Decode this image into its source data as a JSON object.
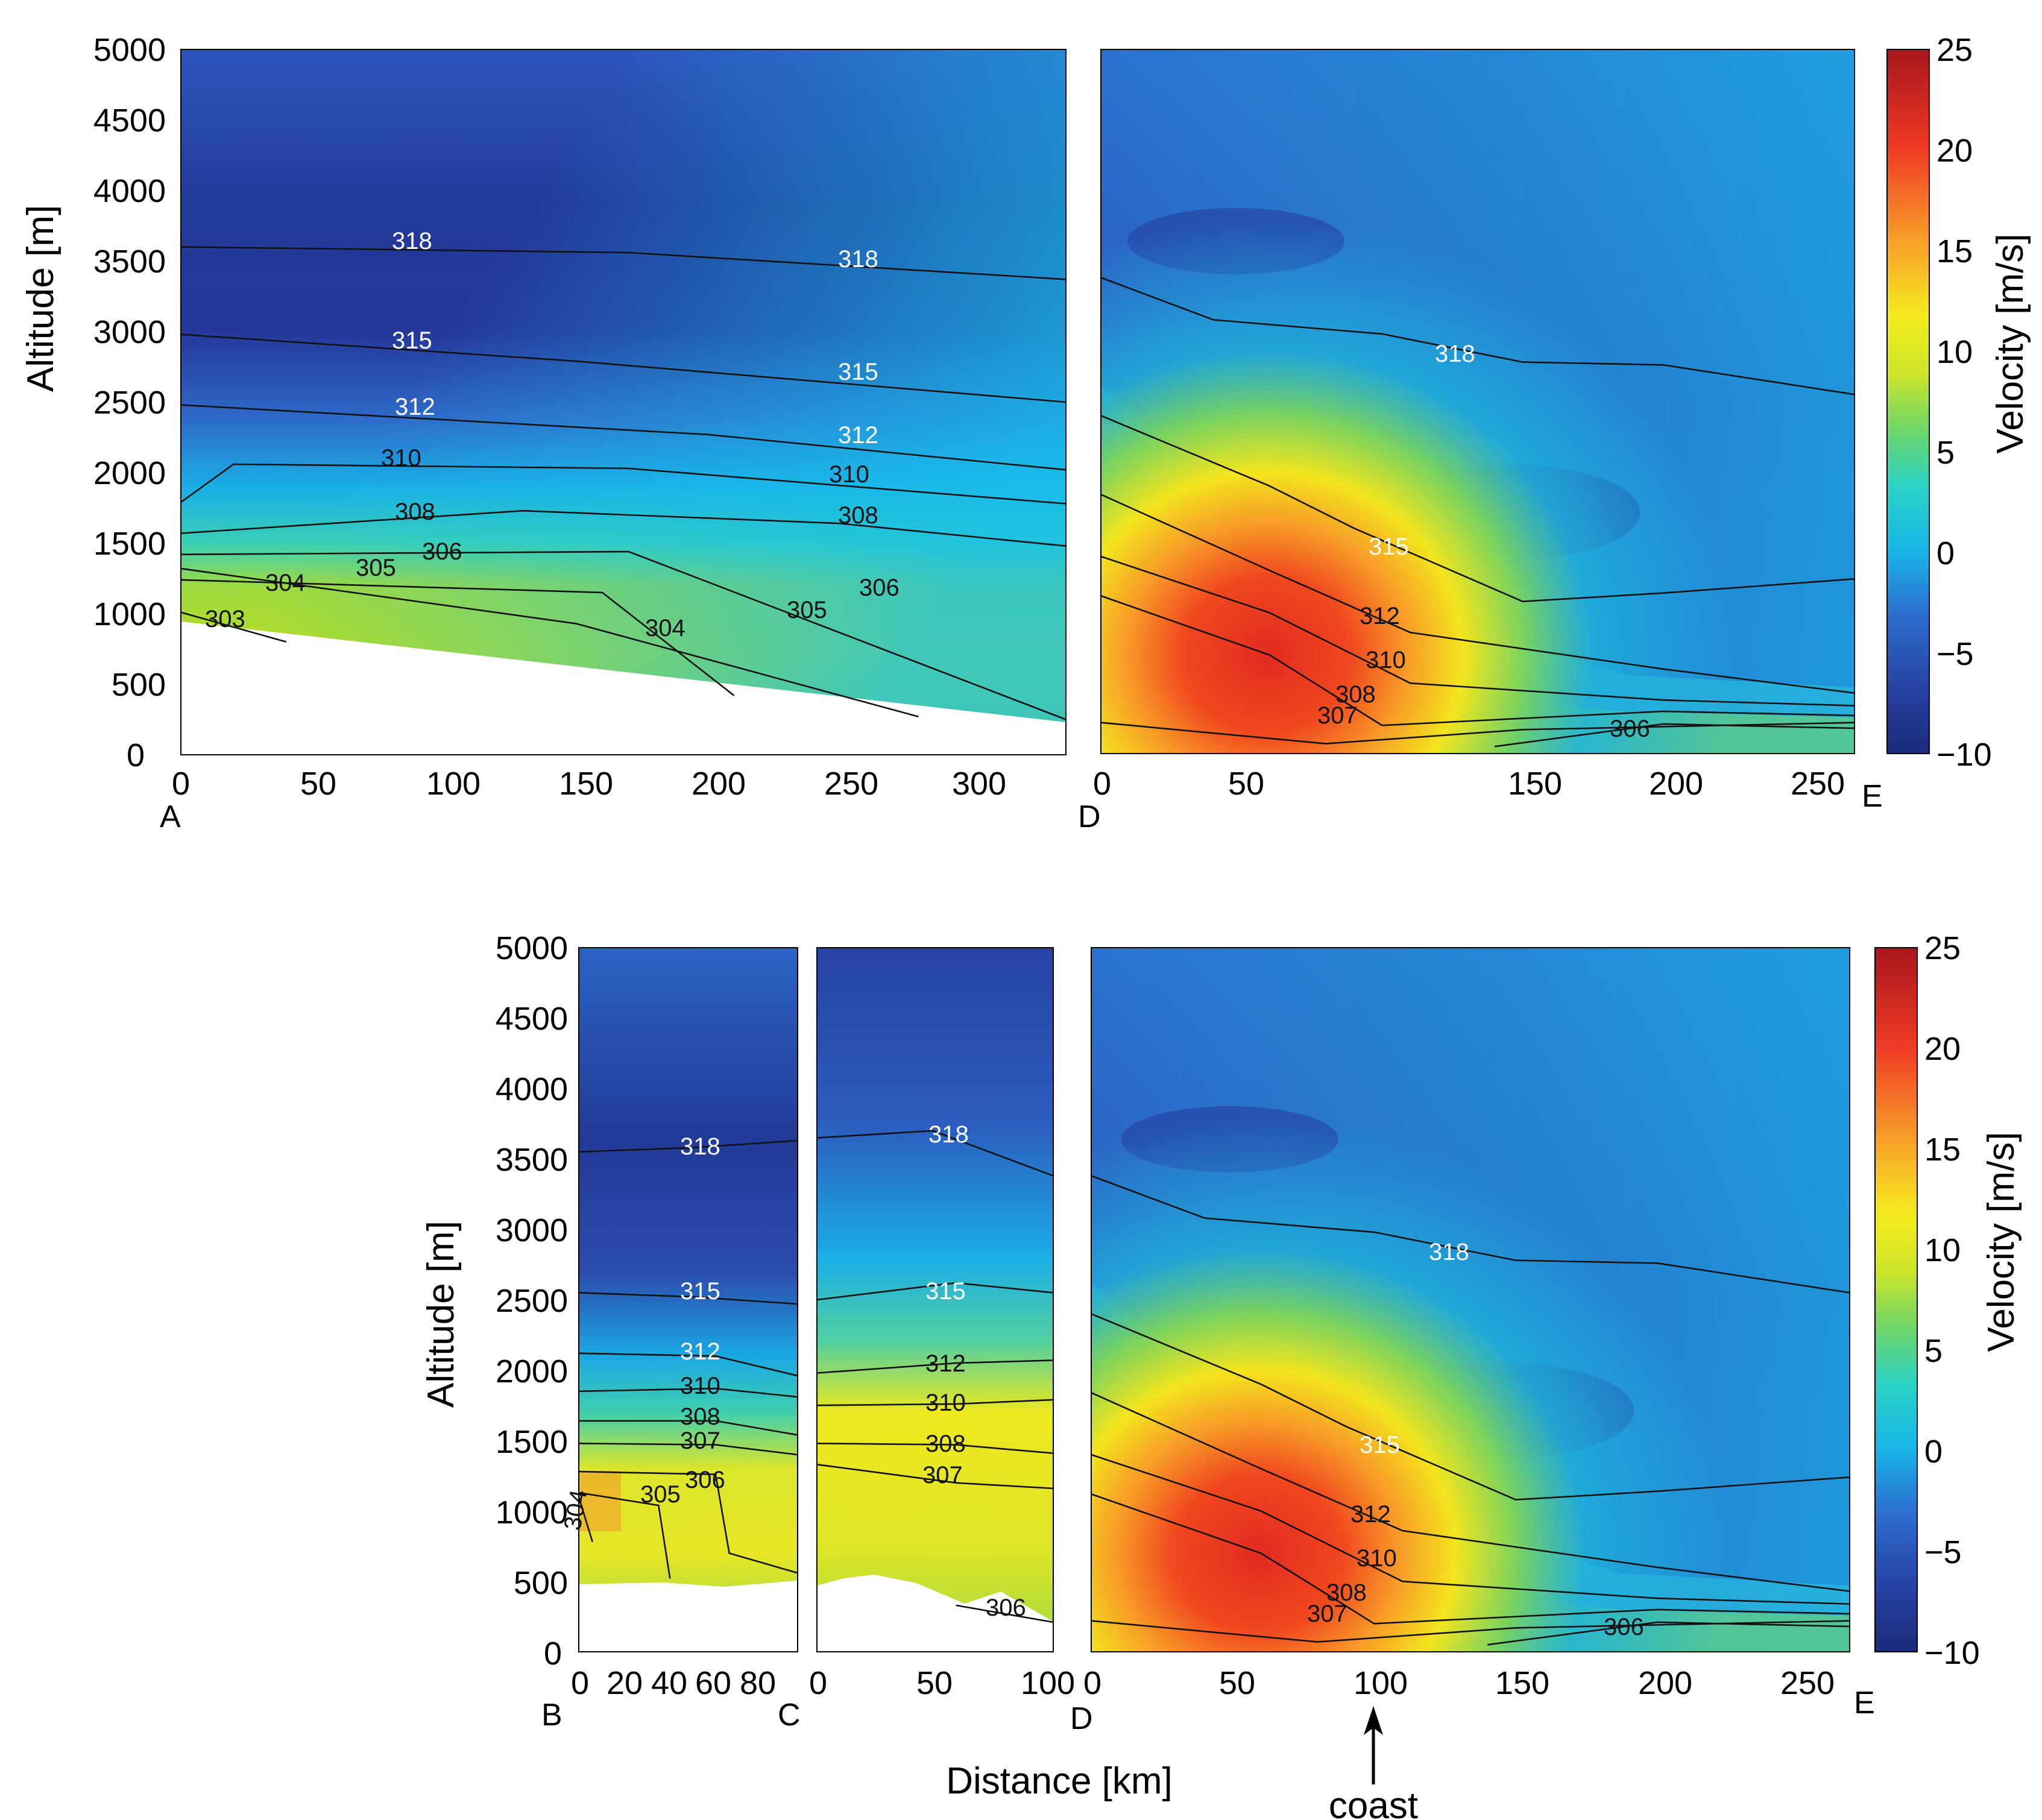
{
  "colorbar": {
    "label": "Velocity [m/s]",
    "ticks": [
      "25",
      "20",
      "15",
      "10",
      "5",
      "0",
      "−5",
      "−10"
    ],
    "range": [
      -10,
      25
    ],
    "stops": [
      "#1b2a7a",
      "#2744a6",
      "#2d6fd0",
      "#19b6e8",
      "#2bd2c5",
      "#6fd66a",
      "#cde52a",
      "#f4ec1e",
      "#f8a52a",
      "#ee3a25",
      "#a8161d"
    ]
  },
  "axes": {
    "altitude_label": "Altitude [m]",
    "altitude_label_bottom": "Altitude  [m]",
    "y_ticks": [
      "5000",
      "4500",
      "4000",
      "3500",
      "3000",
      "2500",
      "2000",
      "1500",
      "1000",
      "500",
      "0"
    ],
    "distance_label": "Distance [km]",
    "coast_label": "coast"
  },
  "chart_data": [
    {
      "type": "heatmap",
      "panel": "A-D",
      "title": "",
      "xlabel": "",
      "ylabel": "Altitude [m]",
      "xlim": [
        0,
        336
      ],
      "ylim": [
        0,
        5000
      ],
      "x_ticks": [
        "0",
        "50",
        "100",
        "150",
        "200",
        "250",
        "300"
      ],
      "endpoints": [
        "A",
        "D"
      ],
      "terrain": [
        [
          0,
          930
        ],
        [
          100,
          620
        ],
        [
          200,
          420
        ],
        [
          336,
          160
        ]
      ],
      "contours": [
        {
          "label": "318",
          "points": [
            [
              0,
              3600
            ],
            [
              170,
              3560
            ],
            [
              336,
              3370
            ]
          ]
        },
        {
          "label": "315",
          "points": [
            [
              0,
              2980
            ],
            [
              150,
              2790
            ],
            [
              336,
              2500
            ]
          ]
        },
        {
          "label": "312",
          "points": [
            [
              0,
              2480
            ],
            [
              200,
              2270
            ],
            [
              336,
              2020
            ]
          ]
        },
        {
          "label": "310",
          "points": [
            [
              0,
              1790
            ],
            [
              20,
              2060
            ],
            [
              170,
              2030
            ],
            [
              336,
              1780
            ]
          ]
        },
        {
          "label": "308",
          "points": [
            [
              0,
              1570
            ],
            [
              130,
              1730
            ],
            [
              250,
              1640
            ],
            [
              336,
              1480
            ]
          ]
        },
        {
          "label": "306",
          "points": [
            [
              0,
              1420
            ],
            [
              170,
              1440
            ],
            [
              336,
              250
            ]
          ]
        },
        {
          "label": "305",
          "points": [
            [
              0,
              1320
            ],
            [
              150,
              930
            ],
            [
              280,
              270
            ]
          ]
        },
        {
          "label": "304",
          "points": [
            [
              0,
              1240
            ],
            [
              160,
              1150
            ],
            [
              210,
              420
            ]
          ]
        },
        {
          "label": "303",
          "points": [
            [
              0,
              1010
            ],
            [
              40,
              800
            ]
          ]
        }
      ]
    },
    {
      "type": "heatmap",
      "panel": "D-E",
      "title": "",
      "xlabel": "",
      "ylabel": "",
      "xlim": [
        0,
        268
      ],
      "ylim": [
        0,
        5000
      ],
      "x_ticks": [
        "0",
        "50",
        "150",
        "200",
        "250"
      ],
      "endpoints": [
        "D",
        "E"
      ],
      "contours": [
        {
          "label": "318",
          "points": [
            [
              0,
              3380
            ],
            [
              40,
              3080
            ],
            [
              100,
              2980
            ],
            [
              150,
              2780
            ],
            [
              200,
              2760
            ],
            [
              268,
              2550
            ]
          ]
        },
        {
          "label": "315",
          "points": [
            [
              0,
              2400
            ],
            [
              60,
              1900
            ],
            [
              90,
              1600
            ],
            [
              150,
              1080
            ],
            [
              200,
              1140
            ],
            [
              268,
              1240
            ]
          ]
        },
        {
          "label": "312",
          "points": [
            [
              0,
              1840
            ],
            [
              60,
              1300
            ],
            [
              110,
              860
            ],
            [
              200,
              600
            ],
            [
              268,
              430
            ]
          ]
        },
        {
          "label": "310",
          "points": [
            [
              0,
              1400
            ],
            [
              60,
              1000
            ],
            [
              110,
              500
            ],
            [
              200,
              380
            ],
            [
              268,
              340
            ]
          ]
        },
        {
          "label": "308",
          "points": [
            [
              0,
              1120
            ],
            [
              60,
              700
            ],
            [
              100,
              200
            ],
            [
              200,
              300
            ],
            [
              268,
              270
            ]
          ]
        },
        {
          "label": "307",
          "points": [
            [
              0,
              220
            ],
            [
              80,
              70
            ],
            [
              150,
              170
            ],
            [
              268,
              220
            ]
          ]
        },
        {
          "label": "306",
          "points": [
            [
              140,
              50
            ],
            [
              200,
              210
            ],
            [
              268,
              180
            ]
          ]
        }
      ]
    },
    {
      "type": "heatmap",
      "panel": "B-C",
      "title": "",
      "xlabel": "",
      "ylabel": "Altitude  [m]",
      "xlim": [
        0,
        96
      ],
      "ylim": [
        0,
        5000
      ],
      "x_ticks": [
        "0",
        "20",
        "40",
        "60",
        "80"
      ],
      "endpoints": [
        "B",
        "C"
      ],
      "contours": [
        {
          "label": "318",
          "points": [
            [
              0,
              3550
            ],
            [
              50,
              3580
            ],
            [
              96,
              3630
            ]
          ]
        },
        {
          "label": "315",
          "points": [
            [
              0,
              2550
            ],
            [
              50,
              2520
            ],
            [
              96,
              2470
            ]
          ]
        },
        {
          "label": "312",
          "points": [
            [
              0,
              2120
            ],
            [
              60,
              2100
            ],
            [
              96,
              1960
            ]
          ]
        },
        {
          "label": "310",
          "points": [
            [
              0,
              1850
            ],
            [
              60,
              1870
            ],
            [
              96,
              1810
            ]
          ]
        },
        {
          "label": "308",
          "points": [
            [
              0,
              1640
            ],
            [
              60,
              1640
            ],
            [
              96,
              1540
            ]
          ]
        },
        {
          "label": "307",
          "points": [
            [
              0,
              1480
            ],
            [
              60,
              1470
            ],
            [
              96,
              1400
            ]
          ]
        },
        {
          "label": "306",
          "points": [
            [
              0,
              1280
            ],
            [
              60,
              1260
            ],
            [
              66,
              700
            ],
            [
              96,
              560
            ]
          ]
        },
        {
          "label": "305",
          "points": [
            [
              0,
              1130
            ],
            [
              35,
              1040
            ],
            [
              40,
              520
            ]
          ]
        },
        {
          "label": "304",
          "points": [
            [
              0,
              1100
            ],
            [
              6,
              780
            ]
          ]
        }
      ]
    },
    {
      "type": "heatmap",
      "panel": "C-D",
      "title": "",
      "xlabel": "",
      "ylabel": "",
      "xlim": [
        0,
        102
      ],
      "ylim": [
        0,
        5000
      ],
      "x_ticks": [
        "0",
        "50",
        "100"
      ],
      "endpoints": [
        "C",
        "D"
      ],
      "contours": [
        {
          "label": "318",
          "points": [
            [
              0,
              3650
            ],
            [
              50,
              3700
            ],
            [
              102,
              3380
            ]
          ]
        },
        {
          "label": "315",
          "points": [
            [
              0,
              2500
            ],
            [
              60,
              2620
            ],
            [
              102,
              2550
            ]
          ]
        },
        {
          "label": "312",
          "points": [
            [
              0,
              1980
            ],
            [
              60,
              2050
            ],
            [
              102,
              2070
            ]
          ]
        },
        {
          "label": "310",
          "points": [
            [
              0,
              1750
            ],
            [
              60,
              1760
            ],
            [
              102,
              1790
            ]
          ]
        },
        {
          "label": "308",
          "points": [
            [
              0,
              1480
            ],
            [
              60,
              1470
            ],
            [
              102,
              1410
            ]
          ]
        },
        {
          "label": "307",
          "points": [
            [
              0,
              1330
            ],
            [
              60,
              1200
            ],
            [
              102,
              1160
            ]
          ]
        },
        {
          "label": "306",
          "points": [
            [
              60,
              330
            ],
            [
              102,
              210
            ]
          ]
        }
      ]
    },
    {
      "type": "heatmap",
      "panel": "D-E lower",
      "title": "",
      "xlabel": "",
      "ylabel": "",
      "xlim": [
        0,
        268
      ],
      "ylim": [
        0,
        5000
      ],
      "x_ticks": [
        "0",
        "50",
        "100",
        "150",
        "200",
        "250"
      ],
      "endpoints": [
        "D",
        "E"
      ],
      "contours": [
        {
          "label": "318",
          "points": [
            [
              0,
              3380
            ],
            [
              40,
              3080
            ],
            [
              100,
              2980
            ],
            [
              150,
              2780
            ],
            [
              200,
              2760
            ],
            [
              268,
              2550
            ]
          ]
        },
        {
          "label": "315",
          "points": [
            [
              0,
              2400
            ],
            [
              60,
              1900
            ],
            [
              90,
              1600
            ],
            [
              150,
              1080
            ],
            [
              200,
              1140
            ],
            [
              268,
              1240
            ]
          ]
        },
        {
          "label": "312",
          "points": [
            [
              0,
              1840
            ],
            [
              60,
              1300
            ],
            [
              110,
              860
            ],
            [
              200,
              600
            ],
            [
              268,
              430
            ]
          ]
        },
        {
          "label": "310",
          "points": [
            [
              0,
              1400
            ],
            [
              60,
              1000
            ],
            [
              110,
              500
            ],
            [
              200,
              380
            ],
            [
              268,
              340
            ]
          ]
        },
        {
          "label": "308",
          "points": [
            [
              0,
              1120
            ],
            [
              60,
              700
            ],
            [
              100,
              200
            ],
            [
              200,
              300
            ],
            [
              268,
              270
            ]
          ]
        },
        {
          "label": "307",
          "points": [
            [
              0,
              220
            ],
            [
              80,
              70
            ],
            [
              150,
              170
            ],
            [
              268,
              220
            ]
          ]
        },
        {
          "label": "306",
          "points": [
            [
              140,
              50
            ],
            [
              200,
              210
            ],
            [
              268,
              180
            ]
          ]
        }
      ]
    }
  ]
}
